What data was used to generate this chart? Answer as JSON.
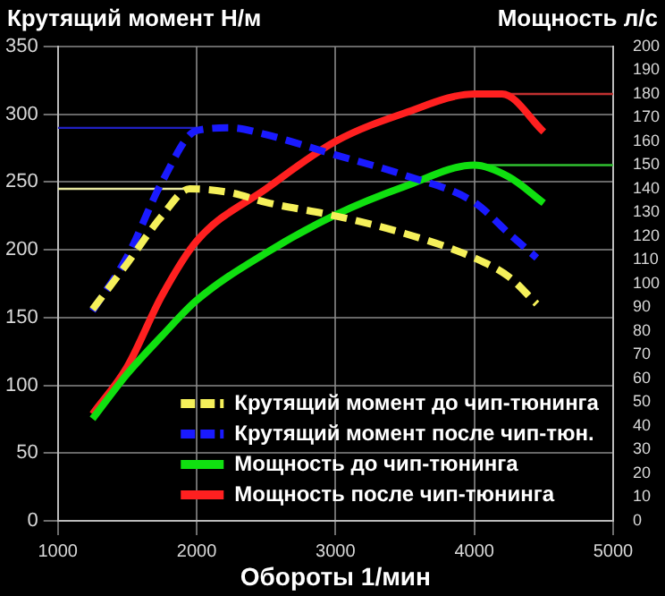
{
  "chart_data": {
    "type": "line",
    "xlabel": "Обороты 1/мин",
    "ylabel": "Крутящий момент Н/м",
    "y2label": "Мощность л/с",
    "xlim": [
      1000,
      5000
    ],
    "xticks": [
      1000,
      2000,
      3000,
      4000,
      5000
    ],
    "ylim": [
      0,
      350
    ],
    "yticks": [
      0,
      50,
      100,
      150,
      200,
      250,
      300,
      350
    ],
    "y2lim": [
      0,
      200
    ],
    "y2ticks": [
      0,
      10,
      20,
      30,
      40,
      50,
      60,
      70,
      80,
      90,
      100,
      110,
      120,
      130,
      140,
      150,
      160,
      170,
      180,
      190,
      200
    ],
    "grid": true,
    "legend": "bottom right",
    "marker": "none",
    "series": [
      {
        "name": "Крутящий момент до чип-тюнинга",
        "color": "#f5f05a",
        "line_style": "dashed",
        "x": [
          1250,
          1500,
          1750,
          1950,
          2250,
          2500,
          3000,
          3500,
          4000,
          4250,
          4450
        ],
        "values": [
          156,
          190,
          225,
          245,
          242,
          235,
          225,
          212,
          194,
          180,
          160
        ]
      },
      {
        "name": "Крутящий момент после чип-тюн.",
        "color": "#1a1aff",
        "line_style": "dashed",
        "x": [
          1250,
          1500,
          1750,
          2000,
          2250,
          2500,
          3000,
          3500,
          4000,
          4250,
          4450
        ],
        "values": [
          155,
          195,
          250,
          288,
          290,
          285,
          270,
          255,
          235,
          212,
          194
        ]
      },
      {
        "name": "Мощность до чип-тюнинга",
        "color": "#10e010",
        "line_style": "solid",
        "axis": "y2",
        "x": [
          1250,
          1500,
          1750,
          2000,
          2500,
          3000,
          3500,
          4000,
          4250,
          4500
        ],
        "values": [
          43,
          62,
          78,
          93,
          113,
          129,
          141,
          150,
          145,
          134
        ]
      },
      {
        "name": "Мощность после чип-тюнинга",
        "color": "#ff2020",
        "line_style": "solid",
        "axis": "y2",
        "x": [
          1250,
          1500,
          1750,
          2000,
          2500,
          3000,
          3500,
          4000,
          4200,
          4500
        ],
        "values": [
          45,
          65,
          95,
          118,
          140,
          160,
          172,
          180,
          180,
          164
        ]
      },
      {
        "color": "#e8e8a0",
        "line_style": "solid",
        "x": [
          1000,
          1950
        ],
        "values": [
          245,
          245
        ]
      },
      {
        "color": "#2020c0",
        "line_style": "solid",
        "x": [
          1000,
          2000
        ],
        "values": [
          290,
          290
        ]
      },
      {
        "color": "#30c030",
        "line_style": "solid",
        "axis": "y2",
        "x": [
          4000,
          5000
        ],
        "values": [
          150,
          150
        ]
      },
      {
        "color": "#c03030",
        "line_style": "solid",
        "axis": "y2",
        "x": [
          4000,
          5000
        ],
        "values": [
          180,
          180
        ]
      }
    ]
  }
}
